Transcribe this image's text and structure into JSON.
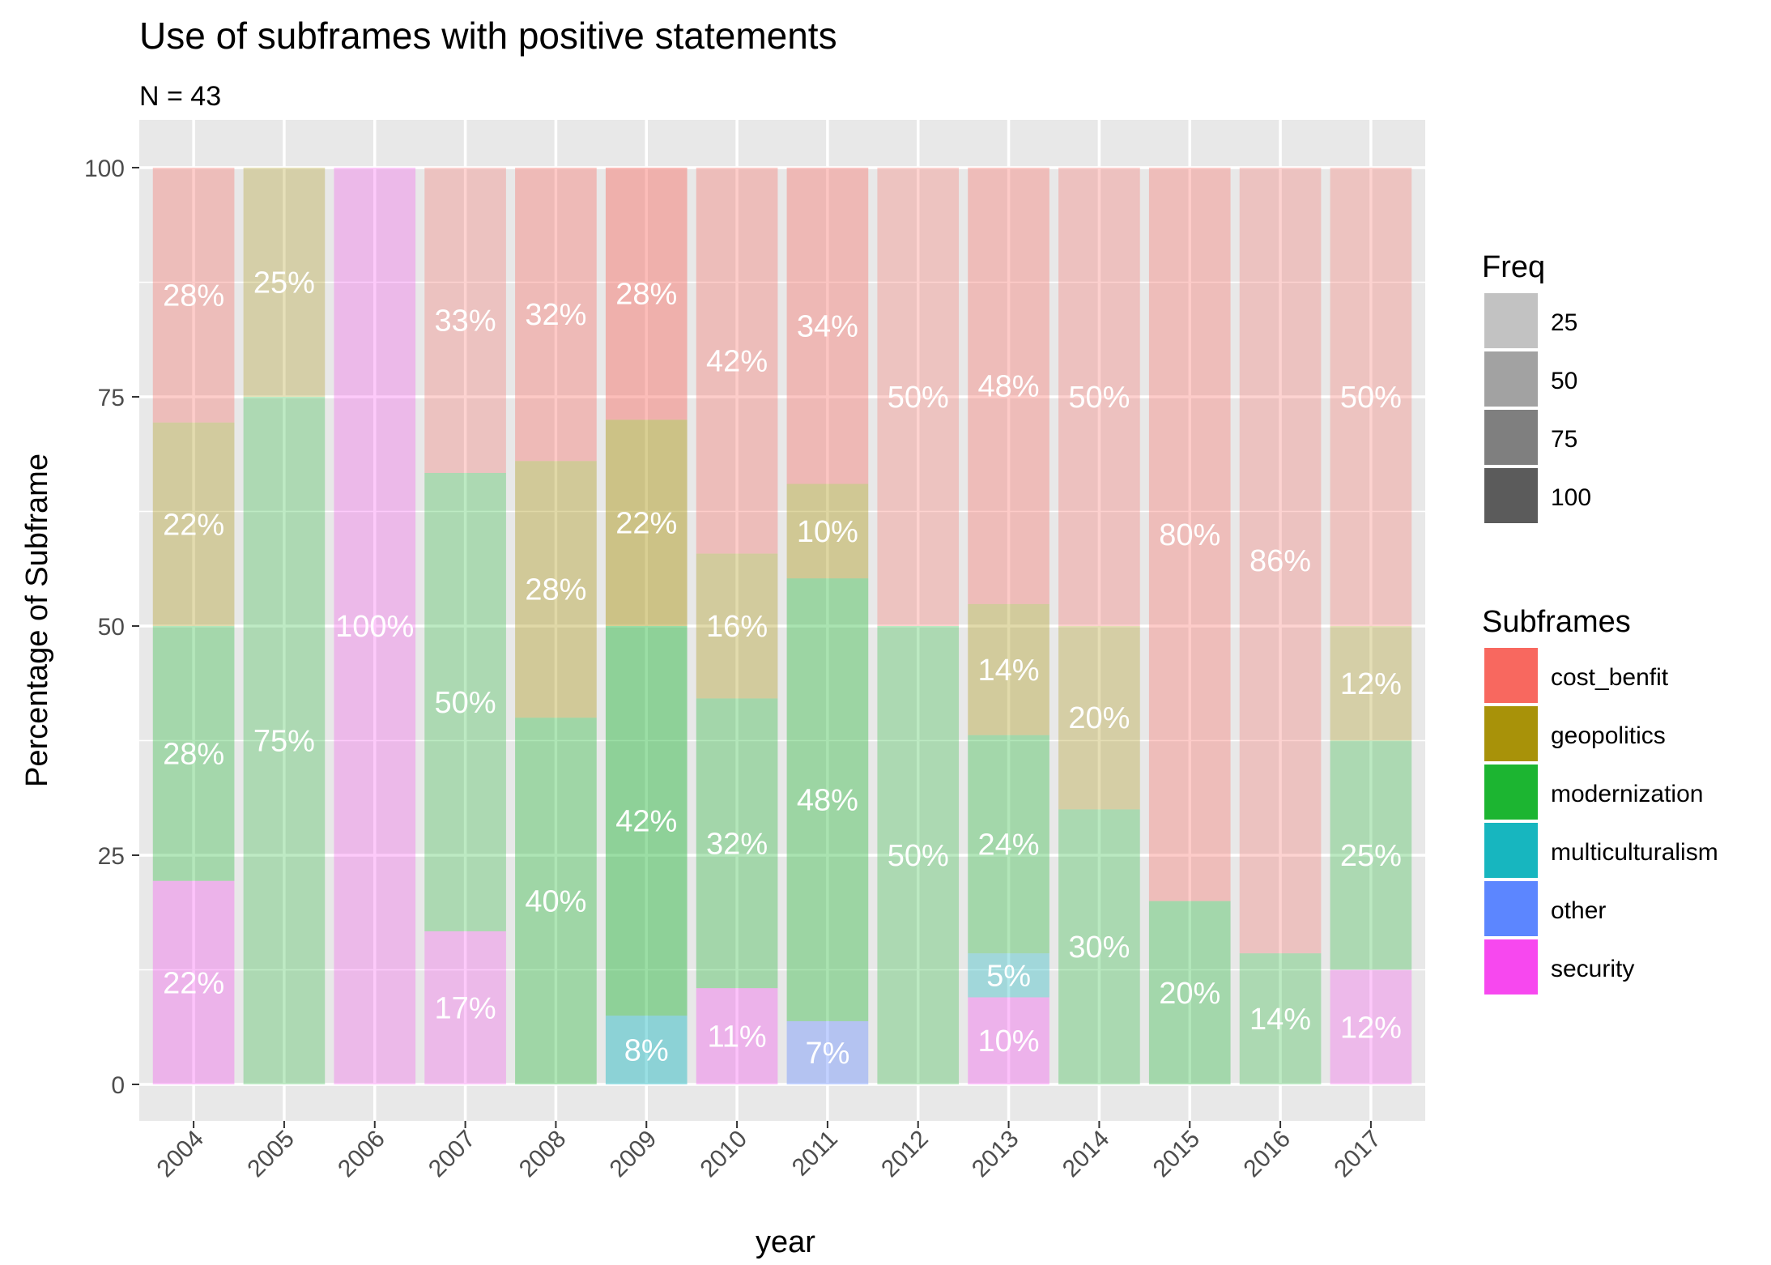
{
  "chart_data": {
    "type": "bar",
    "stacked": true,
    "title": "Use of subframes with positive statements",
    "subtitle": "N = 43",
    "xlabel": "year",
    "ylabel": "Percentage of Subframe",
    "ylim": [
      0,
      100
    ],
    "yticks": [
      "0",
      "25",
      "50",
      "75",
      "100"
    ],
    "categories": [
      "2004",
      "2005",
      "2006",
      "2007",
      "2008",
      "2009",
      "2010",
      "2011",
      "2012",
      "2013",
      "2014",
      "2015",
      "2016",
      "2017"
    ],
    "series": [
      {
        "name": "security",
        "color": "#F748EF",
        "values": [
          22.2,
          0,
          100,
          16.7,
          0,
          0,
          10.5,
          0,
          0,
          9.5,
          0,
          0,
          0,
          12.5
        ]
      },
      {
        "name": "other",
        "color": "#5C86FF",
        "values": [
          0,
          0,
          0,
          0,
          0,
          0,
          0,
          6.9,
          0,
          0,
          0,
          0,
          0,
          0
        ]
      },
      {
        "name": "multiculturalism",
        "color": "#17B6BF",
        "values": [
          0,
          0,
          0,
          0,
          0,
          7.5,
          0,
          0,
          0,
          4.8,
          0,
          0,
          0,
          0
        ]
      },
      {
        "name": "modernization",
        "color": "#1CB531",
        "values": [
          27.8,
          75,
          0,
          50,
          40,
          42.5,
          31.6,
          48.3,
          50,
          23.8,
          30,
          20,
          14.3,
          25
        ]
      },
      {
        "name": "geopolitics",
        "color": "#A89209",
        "values": [
          22.2,
          25,
          0,
          0,
          28,
          22.5,
          15.8,
          10.3,
          0,
          14.3,
          20,
          0,
          0,
          12.5
        ]
      },
      {
        "name": "cost_benfit",
        "color": "#F8685F",
        "values": [
          27.8,
          0,
          0,
          33.3,
          32,
          27.5,
          42.1,
          34.5,
          50,
          47.6,
          50,
          80,
          85.7,
          50
        ]
      }
    ],
    "labels": [
      {
        "series": "security",
        "text": [
          "22%",
          "",
          "100%",
          "17%",
          "",
          "",
          "11%",
          "",
          "",
          "10%",
          "",
          "",
          "",
          "12%"
        ]
      },
      {
        "series": "other",
        "text": [
          "",
          "",
          "",
          "",
          "",
          "",
          "",
          "7%",
          "",
          "",
          "",
          "",
          "",
          ""
        ]
      },
      {
        "series": "multiculturalism",
        "text": [
          "",
          "",
          "",
          "",
          "",
          "8%",
          "",
          "",
          "",
          "5%",
          "",
          "",
          "",
          ""
        ]
      },
      {
        "series": "modernization",
        "text": [
          "28%",
          "75%",
          "",
          "50%",
          "40%",
          "42%",
          "32%",
          "48%",
          "50%",
          "24%",
          "30%",
          "20%",
          "14%",
          "25%"
        ]
      },
      {
        "series": "geopolitics",
        "text": [
          "22%",
          "25%",
          "",
          "",
          "28%",
          "22%",
          "16%",
          "10%",
          "",
          "14%",
          "20%",
          "",
          "",
          "12%"
        ]
      },
      {
        "series": "cost_benfit",
        "text": [
          "28%",
          "",
          "",
          "33%",
          "32%",
          "28%",
          "42%",
          "34%",
          "50%",
          "48%",
          "50%",
          "80%",
          "86%",
          "50%"
        ]
      }
    ],
    "freq": [
      18,
      4,
      7,
      6,
      25,
      40,
      19,
      29,
      8,
      21,
      10,
      20,
      7,
      8
    ],
    "legend": {
      "freq_title": "Freq",
      "freq_items": [
        "25",
        "50",
        "75",
        "100"
      ],
      "subframes_title": "Subframes",
      "subframes_items": [
        {
          "name": "cost_benfit",
          "color": "#F8685F"
        },
        {
          "name": "geopolitics",
          "color": "#A89209"
        },
        {
          "name": "modernization",
          "color": "#1CB531"
        },
        {
          "name": "multiculturalism",
          "color": "#17B6BF"
        },
        {
          "name": "other",
          "color": "#5C86FF"
        },
        {
          "name": "security",
          "color": "#F748EF"
        }
      ],
      "position": "right"
    },
    "grid": true,
    "panel_background": "#E8E8E8"
  }
}
